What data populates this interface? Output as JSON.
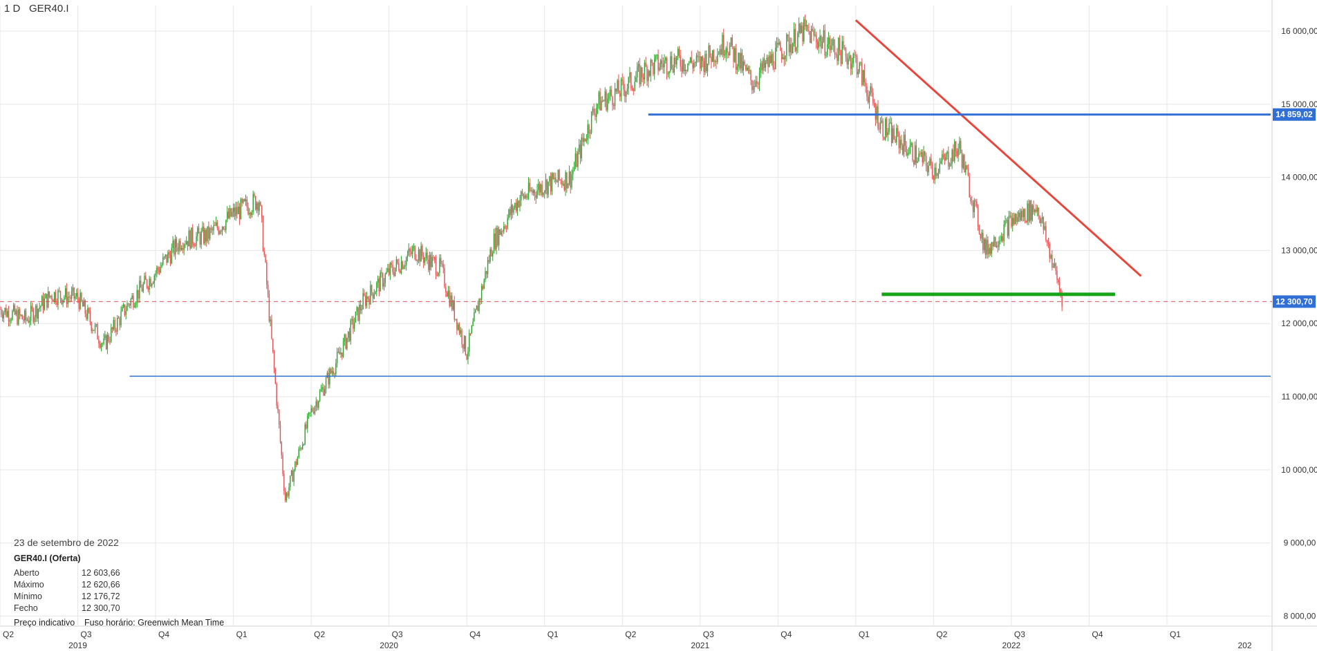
{
  "header": {
    "timeframe": "1 D",
    "symbol": "GER40.I"
  },
  "info_panel": {
    "date": "23 de setembro de 2022",
    "title": "GER40.I (Oferta)",
    "rows": [
      {
        "label": "Aberto",
        "value": "12 603,66"
      },
      {
        "label": "Máximo",
        "value": "12 620,66"
      },
      {
        "label": "Mínimo",
        "value": "12 176,72"
      },
      {
        "label": "Fecho",
        "value": "12 300,70"
      }
    ],
    "note_price": "Preço indicativo",
    "note_tz": "Fuso horário: Greenwich Mean Time"
  },
  "colors": {
    "up": "#2ca02c",
    "down": "#e05050",
    "trend": "#e8463a",
    "resistance": "#2f6fd6",
    "support": "#18a418",
    "last_price": "#e05050",
    "grid": "#e6e6e6"
  },
  "chart_data": {
    "type": "line",
    "title": "",
    "timeframe": "1 D",
    "symbol": "GER40.I",
    "x_ticks": [
      {
        "label": "Q2",
        "date": "2019-04"
      },
      {
        "label": "Q3",
        "date": "2019-07"
      },
      {
        "label": "Q4",
        "date": "2019-10"
      },
      {
        "label": "Q1",
        "date": "2020-01"
      },
      {
        "label": "Q2",
        "date": "2020-04"
      },
      {
        "label": "Q3",
        "date": "2020-07"
      },
      {
        "label": "Q4",
        "date": "2020-10"
      },
      {
        "label": "Q1",
        "date": "2021-01"
      },
      {
        "label": "Q2",
        "date": "2021-04"
      },
      {
        "label": "Q3",
        "date": "2021-07"
      },
      {
        "label": "Q4",
        "date": "2021-10"
      },
      {
        "label": "Q1",
        "date": "2022-01"
      },
      {
        "label": "Q2",
        "date": "2022-04"
      },
      {
        "label": "Q3",
        "date": "2022-07"
      },
      {
        "label": "Q4",
        "date": "2022-10"
      },
      {
        "label": "Q1",
        "date": "2023-01"
      }
    ],
    "year_labels": [
      {
        "label": "2019",
        "date": "2019-07"
      },
      {
        "label": "2020",
        "date": "2020-07"
      },
      {
        "label": "2021",
        "date": "2021-07"
      },
      {
        "label": "2022",
        "date": "2022-07"
      },
      {
        "label": "202",
        "date": "2023-04"
      }
    ],
    "y_ticks": [
      {
        "value": 8000,
        "label": "8 000,00"
      },
      {
        "value": 9000,
        "label": "9 000,00"
      },
      {
        "value": 10000,
        "label": "10 000,00"
      },
      {
        "value": 11000,
        "label": "11 000,00"
      },
      {
        "value": 12000,
        "label": "12 000,00"
      },
      {
        "value": 13000,
        "label": "13 000,00"
      },
      {
        "value": 14000,
        "label": "14 000,00"
      },
      {
        "value": 15000,
        "label": "15 000,00"
      },
      {
        "value": 16000,
        "label": "16 000,00"
      }
    ],
    "ylim": [
      7900,
      16350
    ],
    "xlim": [
      "2019-04",
      "2023-05"
    ],
    "grid": true,
    "series": [
      {
        "close": [
          {
            "date": "2019-04",
            "value": 12200
          },
          {
            "date": "2019-05",
            "value": 12050
          },
          {
            "date": "2019-06",
            "value": 12400
          },
          {
            "date": "2019-07",
            "value": 12350
          },
          {
            "date": "2019-08",
            "value": 11700
          },
          {
            "date": "2019-09",
            "value": 12300
          },
          {
            "date": "2019-10",
            "value": 12700
          },
          {
            "date": "2019-11",
            "value": 13150
          },
          {
            "date": "2019-12",
            "value": 13200
          },
          {
            "date": "2020-01",
            "value": 13500
          },
          {
            "date": "2020-02",
            "value": 13700
          },
          {
            "date": "2020-03",
            "value": 9600
          },
          {
            "date": "2020-04",
            "value": 10800
          },
          {
            "date": "2020-05",
            "value": 11500
          },
          {
            "date": "2020-06",
            "value": 12300
          },
          {
            "date": "2020-07",
            "value": 12700
          },
          {
            "date": "2020-08",
            "value": 13000
          },
          {
            "date": "2020-09",
            "value": 12750
          },
          {
            "date": "2020-10",
            "value": 11600
          },
          {
            "date": "2020-11",
            "value": 13100
          },
          {
            "date": "2020-12",
            "value": 13700
          },
          {
            "date": "2021-01",
            "value": 13900
          },
          {
            "date": "2021-02",
            "value": 14000
          },
          {
            "date": "2021-03",
            "value": 15000
          },
          {
            "date": "2021-04",
            "value": 15200
          },
          {
            "date": "2021-05",
            "value": 15500
          },
          {
            "date": "2021-06",
            "value": 15600
          },
          {
            "date": "2021-07",
            "value": 15550
          },
          {
            "date": "2021-08",
            "value": 15850
          },
          {
            "date": "2021-09",
            "value": 15300
          },
          {
            "date": "2021-10",
            "value": 15700
          },
          {
            "date": "2021-11",
            "value": 16000
          },
          {
            "date": "2021-12",
            "value": 15800
          },
          {
            "date": "2022-01",
            "value": 15600
          },
          {
            "date": "2022-02",
            "value": 14700
          },
          {
            "date": "2022-03",
            "value": 14400
          },
          {
            "date": "2022-04",
            "value": 14100
          },
          {
            "date": "2022-05",
            "value": 14400
          },
          {
            "date": "2022-06",
            "value": 13000
          },
          {
            "date": "2022-07",
            "value": 13400
          },
          {
            "date": "2022-08",
            "value": 13600
          },
          {
            "date": "2022-09",
            "value": 12300
          }
        ]
      }
    ],
    "annotations": [
      {
        "type": "trendline",
        "from": {
          "date": "2022-01",
          "value": 16150
        },
        "to": {
          "date": "2022-12",
          "value": 12650
        }
      },
      {
        "type": "horizontal",
        "value": 14859.02,
        "from": "2021-05",
        "label": "14 859,02"
      },
      {
        "type": "horizontal",
        "value": 12400,
        "from": "2022-02",
        "to": "2022-11"
      },
      {
        "type": "horizontal",
        "value": 11280,
        "from": "2019-09"
      },
      {
        "type": "last_price",
        "value": 12300.7,
        "label": "12 300,70"
      }
    ]
  }
}
